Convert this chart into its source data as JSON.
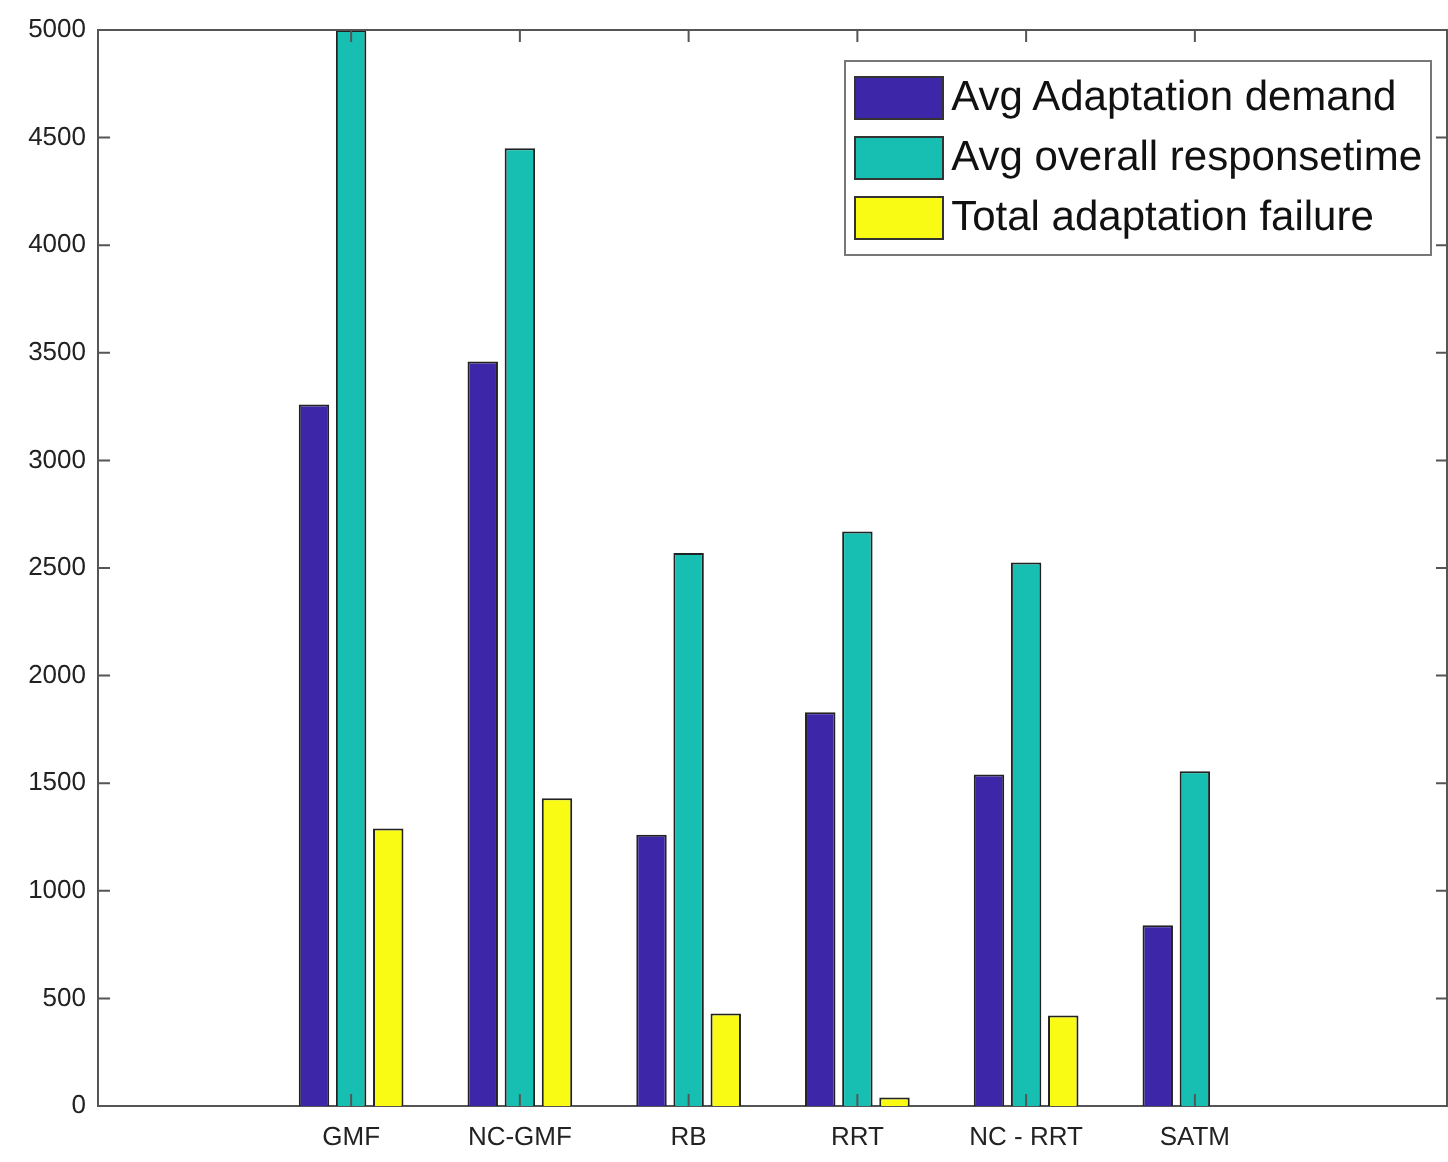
{
  "chart_data": {
    "type": "bar",
    "categories": [
      null,
      "GMF",
      "NC-GMF",
      "RB",
      "RRT",
      "NC - RRT",
      "SATM",
      null
    ],
    "series": [
      {
        "name": "Avg Adaptation demand",
        "color": "#3e26a8",
        "values": [
          null,
          3260,
          3460,
          1260,
          1830,
          1540,
          840,
          null
        ]
      },
      {
        "name": "Avg overall responsetime",
        "color": "#17bfb2",
        "values": [
          null,
          5000,
          4450,
          2570,
          2670,
          2525,
          1555,
          null
        ]
      },
      {
        "name": "Total adaptation failure",
        "color": "#f9fb15",
        "values": [
          null,
          1290,
          1430,
          430,
          40,
          420,
          0,
          null
        ]
      }
    ],
    "ylim": [
      0,
      5000
    ],
    "yticks": [
      0,
      500,
      1000,
      1500,
      2000,
      2500,
      3000,
      3500,
      4000,
      4500,
      5000
    ],
    "grid": false,
    "legend": "top right"
  }
}
